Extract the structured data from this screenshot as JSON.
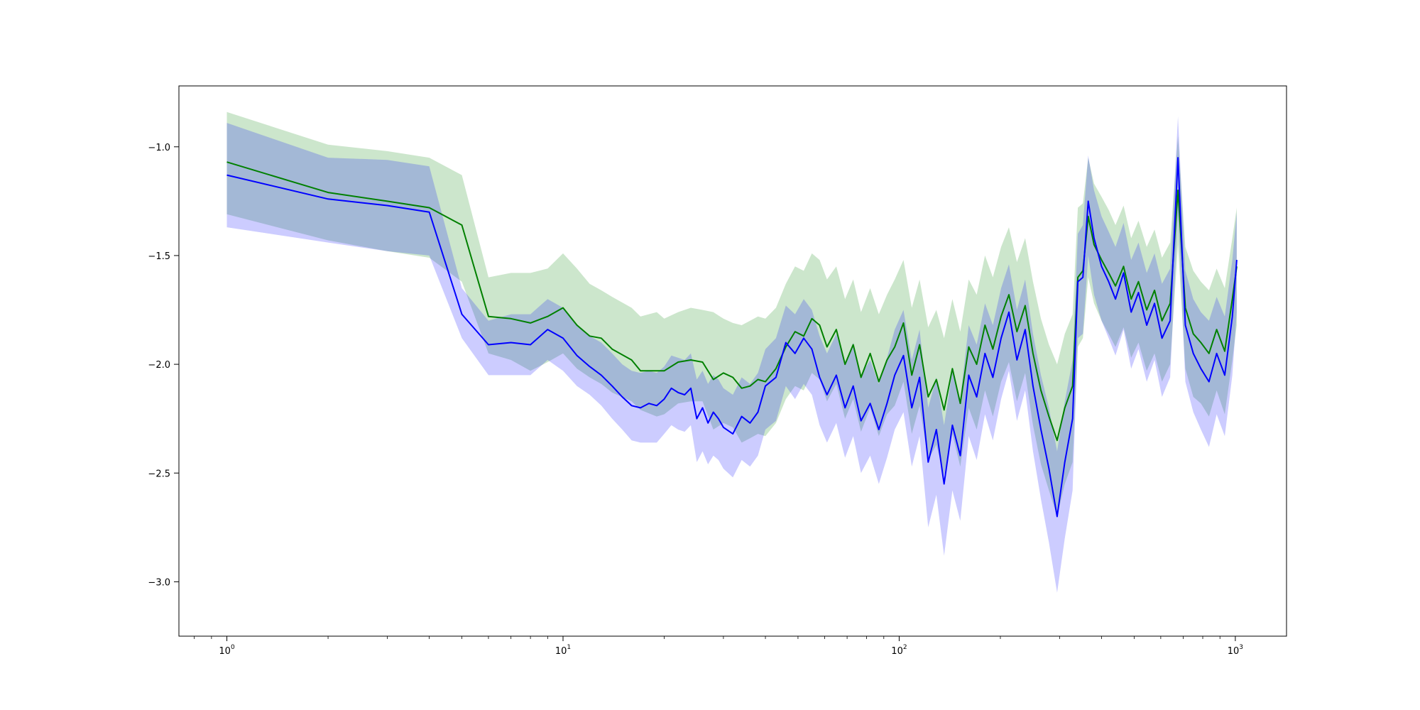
{
  "chart_data": {
    "type": "line",
    "title": "",
    "xlabel": "",
    "ylabel": "",
    "xscale": "log",
    "xlim": [
      0.72,
      1420
    ],
    "ylim": [
      -3.25,
      -0.72
    ],
    "grid": false,
    "x_ticks": [
      {
        "value": 1,
        "base": "10",
        "exp": "0"
      },
      {
        "value": 10,
        "base": "10",
        "exp": "1"
      },
      {
        "value": 100,
        "base": "10",
        "exp": "2"
      },
      {
        "value": 1000,
        "base": "10",
        "exp": "3"
      }
    ],
    "y_ticks": [
      {
        "value": -1.0,
        "label": "−1.0"
      },
      {
        "value": -1.5,
        "label": "−1.5"
      },
      {
        "value": -2.0,
        "label": "−2.0"
      },
      {
        "value": -2.5,
        "label": "−2.5"
      },
      {
        "value": -3.0,
        "label": "−3.0"
      }
    ],
    "series": [
      {
        "color": "#008000",
        "band_color": "#008000",
        "band_opacity": 0.2,
        "points": [
          [
            1,
            -1.07,
            -0.84,
            -1.31
          ],
          [
            2,
            -1.21,
            -0.99,
            -1.43
          ],
          [
            3,
            -1.25,
            -1.02,
            -1.48
          ],
          [
            4,
            -1.28,
            -1.05,
            -1.51
          ],
          [
            5,
            -1.36,
            -1.13,
            -1.62
          ],
          [
            6,
            -1.78,
            -1.6,
            -1.95
          ],
          [
            7,
            -1.79,
            -1.58,
            -1.98
          ],
          [
            8,
            -1.81,
            -1.58,
            -2.03
          ],
          [
            9,
            -1.78,
            -1.56,
            -1.99
          ],
          [
            10,
            -1.74,
            -1.49,
            -1.95
          ],
          [
            11,
            -1.82,
            -1.56,
            -2.02
          ],
          [
            12,
            -1.87,
            -1.63,
            -2.06
          ],
          [
            13,
            -1.88,
            -1.66,
            -2.09
          ],
          [
            14,
            -1.93,
            -1.69,
            -2.13
          ],
          [
            16,
            -1.98,
            -1.74,
            -2.17
          ],
          [
            17,
            -2.03,
            -1.78,
            -2.21
          ],
          [
            19,
            -2.03,
            -1.76,
            -2.24
          ],
          [
            20,
            -2.03,
            -1.79,
            -2.23
          ],
          [
            22,
            -1.99,
            -1.76,
            -2.18
          ],
          [
            24,
            -1.98,
            -1.74,
            -2.17
          ],
          [
            26,
            -1.99,
            -1.75,
            -2.17
          ],
          [
            28,
            -2.07,
            -1.76,
            -2.3
          ],
          [
            30,
            -2.04,
            -1.79,
            -2.27
          ],
          [
            32,
            -2.06,
            -1.81,
            -2.29
          ],
          [
            34,
            -2.11,
            -1.82,
            -2.36
          ],
          [
            36,
            -2.1,
            -1.8,
            -2.34
          ],
          [
            38,
            -2.07,
            -1.78,
            -2.32
          ],
          [
            40,
            -2.08,
            -1.79,
            -2.33
          ],
          [
            43,
            -2.02,
            -1.74,
            -2.27
          ],
          [
            46,
            -1.92,
            -1.63,
            -2.16
          ],
          [
            49,
            -1.85,
            -1.55,
            -2.1
          ],
          [
            52,
            -1.87,
            -1.57,
            -2.12
          ],
          [
            55,
            -1.79,
            -1.49,
            -2.04
          ],
          [
            58,
            -1.82,
            -1.52,
            -2.07
          ],
          [
            61,
            -1.92,
            -1.61,
            -2.17
          ],
          [
            65,
            -1.84,
            -1.55,
            -2.09
          ],
          [
            69,
            -2.0,
            -1.7,
            -2.25
          ],
          [
            73,
            -1.91,
            -1.61,
            -2.16
          ],
          [
            77,
            -2.06,
            -1.76,
            -2.31
          ],
          [
            82,
            -1.95,
            -1.65,
            -2.2
          ],
          [
            87,
            -2.08,
            -1.77,
            -2.33
          ],
          [
            92,
            -1.98,
            -1.68,
            -2.23
          ],
          [
            97,
            -1.92,
            -1.61,
            -2.19
          ],
          [
            103,
            -1.81,
            -1.52,
            -2.08
          ],
          [
            109,
            -2.05,
            -1.74,
            -2.32
          ],
          [
            115,
            -1.91,
            -1.61,
            -2.19
          ],
          [
            122,
            -2.15,
            -1.83,
            -2.44
          ],
          [
            129,
            -2.07,
            -1.75,
            -2.37
          ],
          [
            136,
            -2.21,
            -1.88,
            -2.51
          ],
          [
            144,
            -2.02,
            -1.7,
            -2.32
          ],
          [
            152,
            -2.18,
            -1.85,
            -2.47
          ],
          [
            161,
            -1.92,
            -1.61,
            -2.2
          ],
          [
            170,
            -2.0,
            -1.68,
            -2.3
          ],
          [
            180,
            -1.82,
            -1.5,
            -2.12
          ],
          [
            190,
            -1.93,
            -1.6,
            -2.24
          ],
          [
            201,
            -1.78,
            -1.46,
            -2.08
          ],
          [
            212,
            -1.68,
            -1.37,
            -1.99
          ],
          [
            224,
            -1.85,
            -1.53,
            -2.17
          ],
          [
            237,
            -1.73,
            -1.42,
            -2.04
          ],
          [
            250,
            -1.95,
            -1.62,
            -2.28
          ],
          [
            264,
            -2.12,
            -1.79,
            -2.46
          ],
          [
            279,
            -2.24,
            -1.91,
            -2.58
          ],
          [
            295,
            -2.35,
            -2.0,
            -2.7
          ],
          [
            311,
            -2.2,
            -1.86,
            -2.55
          ],
          [
            328,
            -2.1,
            -1.77,
            -2.45
          ],
          [
            340,
            -1.6,
            -1.28,
            -1.92
          ],
          [
            352,
            -1.57,
            -1.26,
            -1.88
          ],
          [
            365,
            -1.32,
            -1.05,
            -1.6
          ],
          [
            380,
            -1.45,
            -1.17,
            -1.72
          ],
          [
            400,
            -1.52,
            -1.23,
            -1.8
          ],
          [
            420,
            -1.58,
            -1.29,
            -1.86
          ],
          [
            440,
            -1.64,
            -1.36,
            -1.92
          ],
          [
            465,
            -1.55,
            -1.27,
            -1.83
          ],
          [
            490,
            -1.7,
            -1.42,
            -1.97
          ],
          [
            515,
            -1.62,
            -1.34,
            -1.9
          ],
          [
            545,
            -1.75,
            -1.46,
            -2.03
          ],
          [
            575,
            -1.66,
            -1.38,
            -1.95
          ],
          [
            605,
            -1.8,
            -1.51,
            -2.08
          ],
          [
            640,
            -1.72,
            -1.44,
            -2.0
          ],
          [
            675,
            -1.2,
            -0.95,
            -1.45
          ],
          [
            710,
            -1.74,
            -1.46,
            -2.02
          ],
          [
            750,
            -1.86,
            -1.57,
            -2.15
          ],
          [
            790,
            -1.9,
            -1.62,
            -2.18
          ],
          [
            835,
            -1.95,
            -1.66,
            -2.24
          ],
          [
            880,
            -1.84,
            -1.56,
            -2.12
          ],
          [
            930,
            -1.94,
            -1.65,
            -2.23
          ],
          [
            980,
            -1.7,
            -1.42,
            -1.98
          ],
          [
            1010,
            -1.55,
            -1.28,
            -1.82
          ]
        ]
      },
      {
        "color": "#0000ff",
        "band_color": "#0000ff",
        "band_opacity": 0.2,
        "points": [
          [
            1,
            -1.13,
            -0.89,
            -1.37
          ],
          [
            2,
            -1.24,
            -1.05,
            -1.44
          ],
          [
            3,
            -1.27,
            -1.06,
            -1.48
          ],
          [
            4,
            -1.3,
            -1.09,
            -1.5
          ],
          [
            5,
            -1.77,
            -1.65,
            -1.88
          ],
          [
            6,
            -1.91,
            -1.8,
            -2.05
          ],
          [
            7,
            -1.9,
            -1.77,
            -2.05
          ],
          [
            8,
            -1.91,
            -1.77,
            -2.05
          ],
          [
            9,
            -1.84,
            -1.7,
            -1.98
          ],
          [
            10,
            -1.88,
            -1.74,
            -2.03
          ],
          [
            11,
            -1.96,
            -1.82,
            -2.1
          ],
          [
            12,
            -2.01,
            -1.87,
            -2.14
          ],
          [
            13,
            -2.05,
            -1.9,
            -2.19
          ],
          [
            14,
            -2.1,
            -1.95,
            -2.25
          ],
          [
            15,
            -2.15,
            -2.0,
            -2.3
          ],
          [
            16,
            -2.19,
            -2.03,
            -2.35
          ],
          [
            17,
            -2.2,
            -2.04,
            -2.36
          ],
          [
            18,
            -2.18,
            -2.03,
            -2.36
          ],
          [
            19,
            -2.19,
            -2.04,
            -2.36
          ],
          [
            20,
            -2.16,
            -2.01,
            -2.32
          ],
          [
            21,
            -2.11,
            -1.96,
            -2.28
          ],
          [
            22,
            -2.13,
            -1.97,
            -2.3
          ],
          [
            23,
            -2.14,
            -1.98,
            -2.31
          ],
          [
            24,
            -2.11,
            -1.95,
            -2.28
          ],
          [
            25,
            -2.25,
            -2.07,
            -2.45
          ],
          [
            26,
            -2.2,
            -2.03,
            -2.4
          ],
          [
            27,
            -2.27,
            -2.09,
            -2.46
          ],
          [
            28,
            -2.22,
            -2.05,
            -2.42
          ],
          [
            29,
            -2.25,
            -2.07,
            -2.44
          ],
          [
            30,
            -2.29,
            -2.11,
            -2.48
          ],
          [
            32,
            -2.32,
            -2.14,
            -2.52
          ],
          [
            34,
            -2.24,
            -2.06,
            -2.44
          ],
          [
            36,
            -2.27,
            -2.09,
            -2.47
          ],
          [
            38,
            -2.22,
            -2.04,
            -2.42
          ],
          [
            40,
            -2.1,
            -1.93,
            -2.3
          ],
          [
            43,
            -2.06,
            -1.88,
            -2.26
          ],
          [
            46,
            -1.9,
            -1.73,
            -2.1
          ],
          [
            49,
            -1.95,
            -1.77,
            -2.16
          ],
          [
            52,
            -1.88,
            -1.7,
            -2.09
          ],
          [
            55,
            -1.93,
            -1.75,
            -2.14
          ],
          [
            58,
            -2.06,
            -1.87,
            -2.28
          ],
          [
            61,
            -2.14,
            -1.95,
            -2.36
          ],
          [
            65,
            -2.05,
            -1.86,
            -2.27
          ],
          [
            69,
            -2.2,
            -2.0,
            -2.43
          ],
          [
            73,
            -2.1,
            -1.9,
            -2.33
          ],
          [
            77,
            -2.26,
            -2.05,
            -2.5
          ],
          [
            82,
            -2.18,
            -1.98,
            -2.42
          ],
          [
            87,
            -2.3,
            -2.09,
            -2.55
          ],
          [
            92,
            -2.18,
            -1.97,
            -2.43
          ],
          [
            97,
            -2.05,
            -1.84,
            -2.3
          ],
          [
            103,
            -1.96,
            -1.75,
            -2.22
          ],
          [
            109,
            -2.2,
            -1.98,
            -2.47
          ],
          [
            115,
            -2.06,
            -1.84,
            -2.33
          ],
          [
            122,
            -2.45,
            -2.2,
            -2.75
          ],
          [
            129,
            -2.3,
            -2.06,
            -2.6
          ],
          [
            136,
            -2.55,
            -2.28,
            -2.88
          ],
          [
            144,
            -2.28,
            -2.03,
            -2.58
          ],
          [
            152,
            -2.42,
            -2.16,
            -2.72
          ],
          [
            161,
            -2.05,
            -1.82,
            -2.33
          ],
          [
            170,
            -2.15,
            -1.91,
            -2.44
          ],
          [
            180,
            -1.95,
            -1.72,
            -2.23
          ],
          [
            190,
            -2.06,
            -1.82,
            -2.35
          ],
          [
            201,
            -1.88,
            -1.65,
            -2.16
          ],
          [
            212,
            -1.76,
            -1.54,
            -2.03
          ],
          [
            224,
            -1.98,
            -1.75,
            -2.26
          ],
          [
            237,
            -1.84,
            -1.61,
            -2.12
          ],
          [
            250,
            -2.1,
            -1.86,
            -2.4
          ],
          [
            264,
            -2.3,
            -2.05,
            -2.62
          ],
          [
            279,
            -2.48,
            -2.2,
            -2.82
          ],
          [
            295,
            -2.7,
            -2.4,
            -3.05
          ],
          [
            311,
            -2.45,
            -2.17,
            -2.8
          ],
          [
            328,
            -2.25,
            -1.98,
            -2.58
          ],
          [
            340,
            -1.62,
            -1.4,
            -1.88
          ],
          [
            352,
            -1.6,
            -1.36,
            -1.86
          ],
          [
            365,
            -1.25,
            -1.04,
            -1.5
          ],
          [
            380,
            -1.42,
            -1.2,
            -1.68
          ],
          [
            400,
            -1.55,
            -1.32,
            -1.8
          ],
          [
            420,
            -1.62,
            -1.39,
            -1.88
          ],
          [
            440,
            -1.7,
            -1.46,
            -1.96
          ],
          [
            465,
            -1.58,
            -1.35,
            -1.84
          ],
          [
            490,
            -1.76,
            -1.52,
            -2.02
          ],
          [
            515,
            -1.67,
            -1.44,
            -1.93
          ],
          [
            545,
            -1.82,
            -1.58,
            -2.08
          ],
          [
            575,
            -1.72,
            -1.49,
            -1.98
          ],
          [
            605,
            -1.88,
            -1.63,
            -2.15
          ],
          [
            640,
            -1.8,
            -1.56,
            -2.06
          ],
          [
            675,
            -1.05,
            -0.86,
            -1.3
          ],
          [
            710,
            -1.82,
            -1.57,
            -2.08
          ],
          [
            750,
            -1.95,
            -1.7,
            -2.22
          ],
          [
            790,
            -2.02,
            -1.76,
            -2.3
          ],
          [
            835,
            -2.08,
            -1.8,
            -2.38
          ],
          [
            880,
            -1.95,
            -1.69,
            -2.23
          ],
          [
            930,
            -2.05,
            -1.78,
            -2.33
          ],
          [
            980,
            -1.78,
            -1.52,
            -2.05
          ],
          [
            1010,
            -1.52,
            -1.3,
            -1.76
          ]
        ]
      }
    ]
  }
}
